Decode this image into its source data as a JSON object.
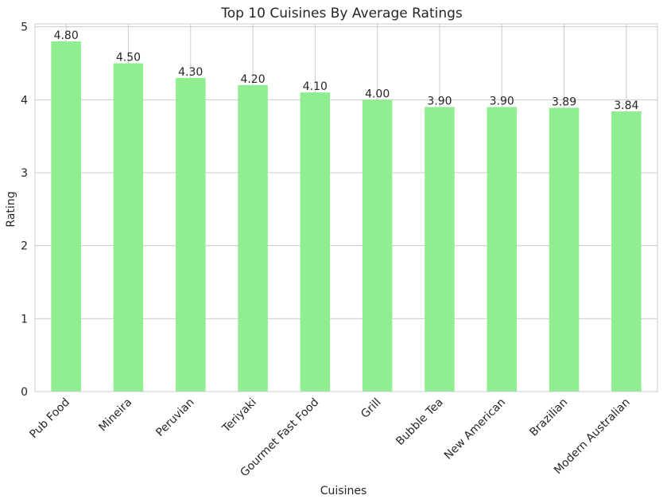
{
  "chart_data": {
    "type": "bar",
    "title": "Top 10 Cuisines By Average Ratings",
    "xlabel": "Cuisines",
    "ylabel": "Rating",
    "categories": [
      "Pub Food",
      "Mineira",
      "Peruvian",
      "Teriyaki",
      "Gourmet Fast Food",
      "Grill",
      "Bubble Tea",
      "New American",
      "Brazilian",
      "Modern Australian"
    ],
    "values": [
      4.8,
      4.5,
      4.3,
      4.2,
      4.1,
      4.0,
      3.9,
      3.9,
      3.89,
      3.84
    ],
    "data_labels": [
      "4.80",
      "4.50",
      "4.30",
      "4.20",
      "4.10",
      "4.00",
      "3.90",
      "3.90",
      "3.89",
      "3.84"
    ],
    "ylim": [
      0,
      5.04
    ],
    "yticks": [
      0,
      1,
      2,
      3,
      4,
      5
    ],
    "ytick_labels": [
      "0",
      "1",
      "2",
      "3",
      "4",
      "5"
    ],
    "grid": true,
    "bar_color": "#90ee90",
    "xtick_rotation": 45
  }
}
